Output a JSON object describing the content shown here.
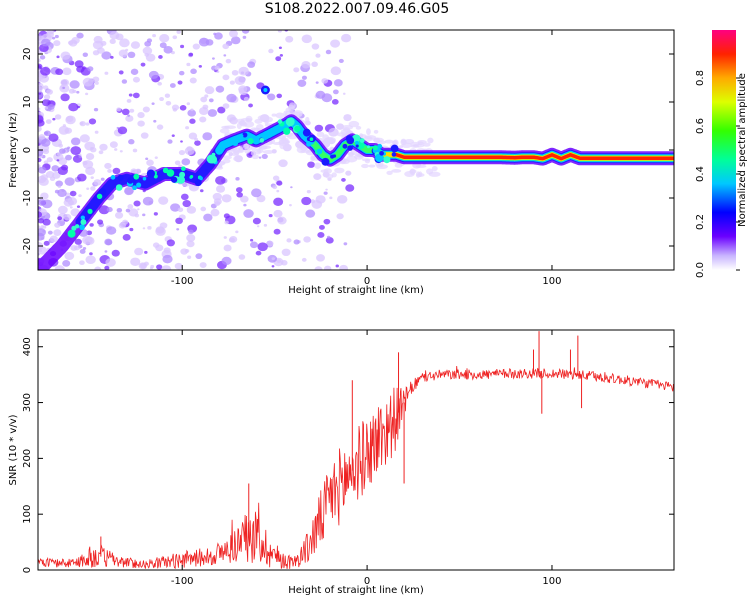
{
  "title": "S108.2022.007.09.46.G05",
  "chart_data": [
    {
      "type": "heatmap",
      "panel": "top",
      "xlabel": "Height of straight line (km)",
      "ylabel": "Frequency (Hz)",
      "xlim": [
        -178,
        166
      ],
      "ylim": [
        -25,
        25
      ],
      "xticks": [
        -100,
        0,
        100
      ],
      "yticks": [
        -20,
        -10,
        0,
        10,
        20
      ],
      "colorbar": {
        "label": "Normalized spectral amplitude",
        "range": [
          0,
          1
        ],
        "ticks": [
          0.0,
          0.2,
          0.4,
          0.6,
          0.8
        ]
      },
      "ridge": {
        "x": [
          -175,
          -165,
          -155,
          -145,
          -138,
          -130,
          -120,
          -110,
          -100,
          -92,
          -85,
          -78,
          -72,
          -65,
          -60,
          -55,
          -50,
          -45,
          -41,
          -38,
          -34,
          -28,
          -24,
          -20,
          -16,
          -12,
          -8,
          -4,
          0,
          4,
          8,
          12,
          16,
          20,
          60,
          70,
          80,
          85,
          90,
          95,
          100,
          105,
          110,
          115,
          130,
          166
        ],
        "y": [
          -24,
          -20,
          -15,
          -10,
          -7,
          -6,
          -7,
          -5,
          -5,
          -6,
          -3,
          1,
          2,
          3,
          2,
          3,
          4,
          5,
          6,
          5,
          3,
          1,
          -1,
          -2,
          -1,
          1,
          2,
          1,
          0,
          0,
          -1,
          -1,
          -1,
          -1.5,
          -1.5,
          -1.5,
          -1.6,
          -1.5,
          -1.5,
          -1.8,
          -1,
          -1.8,
          -1,
          -1.7,
          -1.7,
          -1.7
        ]
      },
      "peak_strength": {
        "x": [
          -178,
          -100,
          -80,
          -60,
          -40,
          -20,
          0,
          15,
          30,
          166
        ],
        "a": [
          0.15,
          0.25,
          0.35,
          0.45,
          0.5,
          0.55,
          0.65,
          0.85,
          0.95,
          0.95
        ]
      }
    },
    {
      "type": "line",
      "panel": "bottom",
      "xlabel": "Height of straight line (km)",
      "ylabel": "SNR (10 * v/v)",
      "xlim": [
        -178,
        166
      ],
      "ylim": [
        0,
        430
      ],
      "xticks": [
        -100,
        0,
        100
      ],
      "yticks": [
        0,
        100,
        200,
        300,
        400
      ],
      "color": "#ee2222",
      "envelope": {
        "x": [
          -178,
          -160,
          -145,
          -135,
          -120,
          -100,
          -85,
          -75,
          -68,
          -60,
          -50,
          -40,
          -32,
          -25,
          -20,
          -15,
          -10,
          -5,
          0,
          5,
          10,
          15,
          20,
          25,
          30,
          40,
          60,
          80,
          100,
          120,
          140,
          166
        ],
        "mean": [
          14,
          12,
          25,
          15,
          10,
          18,
          25,
          35,
          55,
          60,
          25,
          12,
          40,
          90,
          130,
          150,
          170,
          190,
          210,
          230,
          250,
          270,
          300,
          330,
          345,
          350,
          350,
          352,
          352,
          348,
          340,
          328
        ],
        "spread": [
          8,
          8,
          22,
          10,
          8,
          15,
          18,
          25,
          40,
          50,
          25,
          10,
          30,
          55,
          60,
          70,
          70,
          70,
          65,
          70,
          70,
          60,
          25,
          12,
          10,
          9,
          9,
          9,
          9,
          9,
          9,
          9
        ]
      },
      "spikes": [
        {
          "x": 93,
          "y": 428
        },
        {
          "x": 94.5,
          "y": 280
        },
        {
          "x": 90,
          "y": 395
        },
        {
          "x": 114,
          "y": 420
        },
        {
          "x": 116,
          "y": 290
        },
        {
          "x": 110,
          "y": 395
        },
        {
          "x": 17,
          "y": 390
        },
        {
          "x": -8,
          "y": 340
        },
        {
          "x": -64,
          "y": 155
        },
        {
          "x": -144,
          "y": 60
        },
        {
          "x": 20,
          "y": 155
        }
      ]
    }
  ]
}
